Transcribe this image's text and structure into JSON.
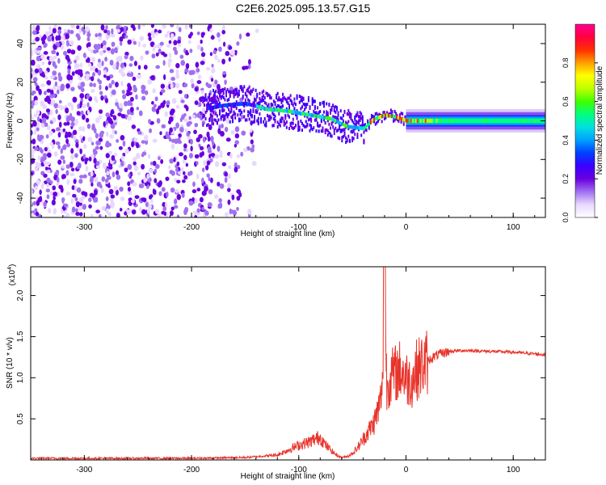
{
  "page": {
    "title": "C2E6.2025.095.13.57.G15"
  },
  "chart_data": [
    {
      "type": "heatmap",
      "xlabel": "Height of straight line (km)",
      "ylabel": "Frequency (Hz)",
      "xlim": [
        -350,
        130
      ],
      "ylim": [
        -50,
        50
      ],
      "x_ticks": [
        -300,
        -200,
        -100,
        0,
        100
      ],
      "x_tick_labels": [
        "-300",
        "-200",
        "-100",
        "0",
        "100"
      ],
      "y_ticks": [
        -40,
        -20,
        0,
        20,
        40
      ],
      "y_tick_labels": [
        "-40",
        "-20",
        "0",
        "20",
        "40"
      ],
      "colorbar": {
        "label": "Normalized spectral amplitude",
        "range": [
          0,
          1
        ],
        "ticks": [
          0.0,
          0.2,
          0.4,
          0.6,
          0.8
        ],
        "tick_labels": [
          "0.0",
          "0.2",
          "0.4",
          "0.6",
          "0.8"
        ],
        "colormap": [
          "#ffffff",
          "#e8d8ff",
          "#a070f0",
          "#6a00e0",
          "#3a00ff",
          "#0040ff",
          "#00a0ff",
          "#00e0e0",
          "#00ff80",
          "#40ff00",
          "#c0ff00",
          "#ffff00",
          "#ffa000",
          "#ff3000",
          "#ff0040",
          "#ff0090"
        ]
      },
      "ridge": {
        "x": [
          -190,
          -170,
          -150,
          -130,
          -110,
          -90,
          -70,
          -55,
          -40,
          -30,
          -20,
          -10,
          0,
          20,
          50,
          80,
          130
        ],
        "frequency": [
          6,
          8,
          9,
          6,
          5,
          3,
          1,
          -3,
          -4,
          1,
          3,
          2,
          0,
          0,
          0,
          0,
          0
        ]
      },
      "noise_region": [
        -350,
        -190
      ],
      "grid": false
    },
    {
      "type": "line",
      "xlabel": "Height of straight line (km)",
      "ylabel": "SNR (10 * v/v)",
      "y_multiplier_label": "(x10",
      "y_multiplier_exp": "4",
      "xlim": [
        -350,
        130
      ],
      "ylim": [
        0,
        2.35
      ],
      "x_ticks": [
        -300,
        -200,
        -100,
        0,
        100
      ],
      "x_tick_labels": [
        "-300",
        "-200",
        "-100",
        "0",
        "100"
      ],
      "y_ticks": [
        0.5,
        1.0,
        1.5,
        2.0
      ],
      "y_tick_labels": [
        "0.5",
        "1.0",
        "1.5",
        "2.0"
      ],
      "series": [
        {
          "color": "#e8332a",
          "x": [
            -350,
            -300,
            -250,
            -200,
            -150,
            -120,
            -110,
            -100,
            -90,
            -85,
            -80,
            -75,
            -70,
            -65,
            -60,
            -55,
            -50,
            -45,
            -40,
            -35,
            -30,
            -25,
            -22,
            -20,
            -18,
            -15,
            -10,
            -5,
            0,
            5,
            10,
            15,
            20,
            25,
            30,
            35,
            40,
            50,
            60,
            80,
            100,
            120,
            130
          ],
          "y": [
            0.02,
            0.02,
            0.02,
            0.02,
            0.03,
            0.06,
            0.12,
            0.18,
            0.22,
            0.25,
            0.28,
            0.18,
            0.12,
            0.06,
            0.03,
            0.04,
            0.08,
            0.15,
            0.25,
            0.35,
            0.45,
            0.65,
            0.85,
            2.35,
            0.9,
            1.0,
            1.05,
            1.1,
            1.0,
            0.95,
            1.1,
            1.15,
            1.2,
            1.25,
            1.28,
            1.3,
            1.32,
            1.33,
            1.33,
            1.32,
            1.31,
            1.29,
            1.28
          ]
        }
      ],
      "grid": false
    }
  ]
}
